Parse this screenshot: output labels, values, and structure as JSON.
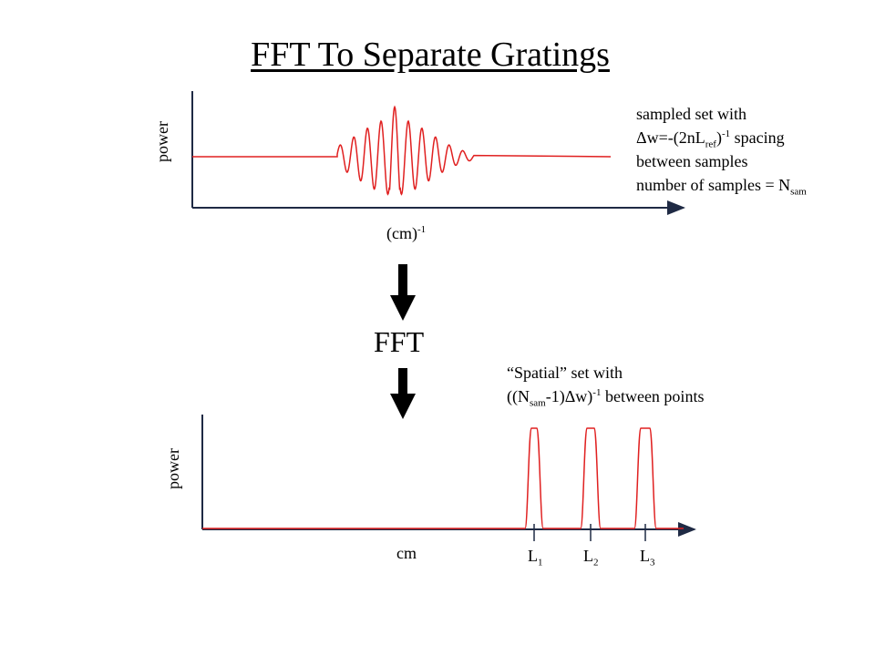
{
  "title": "FFT To Separate Gratings",
  "top_plot": {
    "ylabel": "power",
    "xlabel_base": "(cm)",
    "xlabel_exp": "-1",
    "note": {
      "line1": "sampled set with",
      "line2_pre": "Δw=-(2nL",
      "line2_sub": "ref",
      "line2_mid": ")",
      "line2_sup": "-1",
      "line2_post": " spacing",
      "line3": "between samples",
      "line4_pre": "number of samples = N",
      "line4_sub": "sam"
    }
  },
  "arrow_label": "FFT",
  "bottom_plot": {
    "ylabel": "power",
    "xlabel": "cm",
    "note": {
      "line1": "“Spatial” set with",
      "line2_pre": "((N",
      "line2_sub": "sam",
      "line2_mid": "-1)Δw)",
      "line2_sup": "-1",
      "line2_post": " between points"
    },
    "peaks": [
      {
        "base": "L",
        "sub": "1"
      },
      {
        "base": "L",
        "sub": "2"
      },
      {
        "base": "L",
        "sub": "3"
      }
    ]
  },
  "colors": {
    "signal": "#e02020",
    "axis": "#1f2a44",
    "arrow": "#000000"
  }
}
